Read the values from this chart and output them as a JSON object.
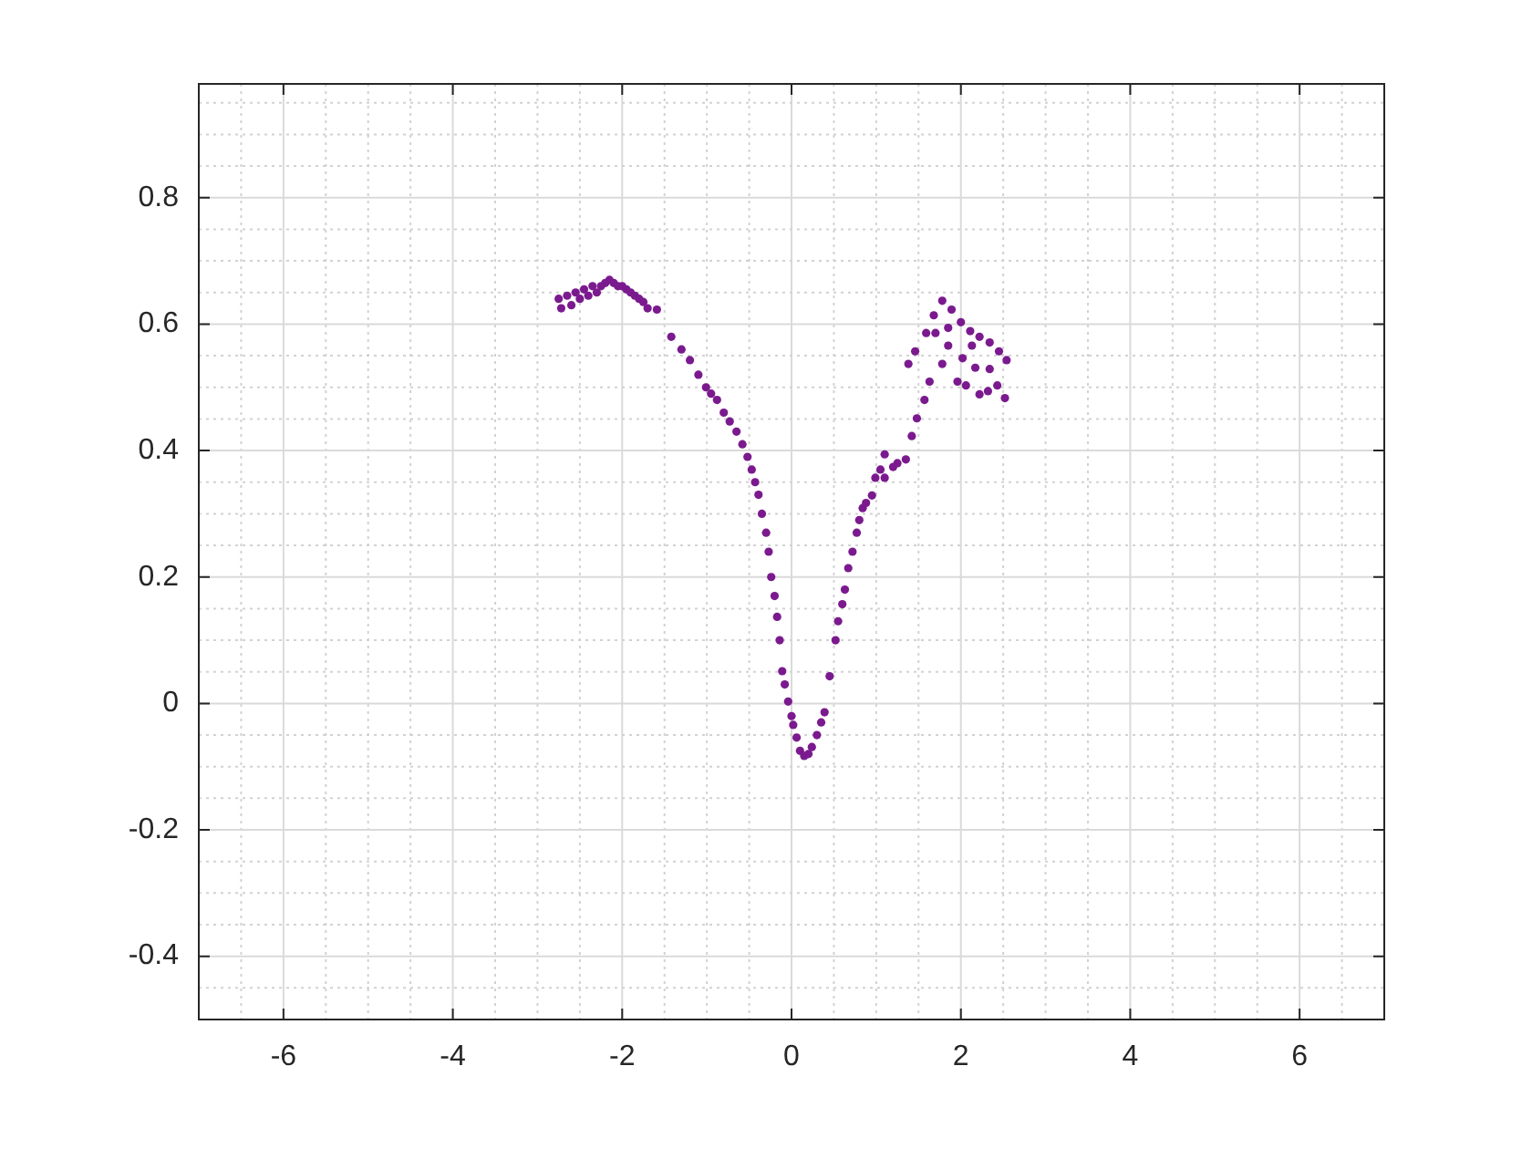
{
  "chart_data": {
    "type": "scatter",
    "marker": "circle",
    "grid": true,
    "xlim": [
      -7,
      7
    ],
    "ylim": [
      -0.5,
      0.98
    ],
    "xticks": [
      {
        "value": -7,
        "label": null
      },
      {
        "value": -6.5,
        "label": null
      },
      -6,
      {
        "value": -5.5,
        "label": null
      },
      {
        "value": -5,
        "label": null
      },
      {
        "value": -4.5,
        "label": null
      },
      -4,
      {
        "value": -3.5,
        "label": null
      },
      {
        "value": -3,
        "label": null
      },
      {
        "value": -2.5,
        "label": null
      },
      -2,
      {
        "value": -1.5,
        "label": null
      },
      {
        "value": -1,
        "label": null
      },
      {
        "value": -0.5,
        "label": null
      },
      0,
      {
        "value": 0.5,
        "label": null
      },
      {
        "value": 1,
        "label": null
      },
      {
        "value": 1.5,
        "label": null
      },
      2,
      {
        "value": 2.5,
        "label": null
      },
      {
        "value": 3,
        "label": null
      },
      {
        "value": 3.5,
        "label": null
      },
      4,
      {
        "value": 4.5,
        "label": null
      },
      {
        "value": 5,
        "label": null
      },
      {
        "value": 5.5,
        "label": null
      },
      6,
      {
        "value": 6.5,
        "label": null
      },
      {
        "value": 7,
        "label": null
      }
    ],
    "yticks": [
      {
        "value": -0.5,
        "label": null
      },
      {
        "value": -0.45,
        "label": null
      },
      -0.4,
      {
        "value": -0.35,
        "label": null
      },
      {
        "value": -0.3,
        "label": null
      },
      {
        "value": -0.25,
        "label": null
      },
      -0.2,
      {
        "value": -0.15,
        "label": null
      },
      {
        "value": -0.1,
        "label": null
      },
      {
        "value": -0.05,
        "label": null
      },
      0,
      {
        "value": 0.05,
        "label": null
      },
      {
        "value": 0.1,
        "label": null
      },
      {
        "value": 0.15,
        "label": null
      },
      0.2,
      {
        "value": 0.25,
        "label": null
      },
      {
        "value": 0.3,
        "label": null
      },
      {
        "value": 0.35,
        "label": null
      },
      0.4,
      {
        "value": 0.45,
        "label": null
      },
      {
        "value": 0.5,
        "label": null
      },
      {
        "value": 0.55,
        "label": null
      },
      0.6,
      {
        "value": 0.65,
        "label": null
      },
      {
        "value": 0.7,
        "label": null
      },
      {
        "value": 0.75,
        "label": null
      },
      0.8,
      {
        "value": 0.85,
        "label": null
      },
      {
        "value": 0.9,
        "label": null
      },
      {
        "value": 0.95,
        "label": null
      }
    ],
    "series": [
      {
        "color": "#7b1a8e",
        "x": [
          -2.75,
          -2.72,
          -2.65,
          -2.6,
          -2.55,
          -2.5,
          -2.45,
          -2.4,
          -2.35,
          -2.3,
          -2.25,
          -2.2,
          -2.15,
          -2.1,
          -2.05,
          -2.0,
          -1.95,
          -1.9,
          -1.85,
          -1.8,
          -1.75,
          -1.7,
          -1.59,
          -1.42,
          -1.3,
          -1.2,
          -1.1,
          -1.01,
          -0.95,
          -0.88,
          -0.8,
          -0.73,
          -0.65,
          -0.58,
          -0.52,
          -0.47,
          -0.43,
          -0.39,
          -0.35,
          -0.3,
          -0.27,
          -0.24,
          -0.2,
          -0.17,
          -0.14,
          -0.11,
          -0.08,
          -0.04,
          0.0,
          0.02,
          0.06,
          0.1,
          0.15,
          0.2,
          0.24,
          0.3,
          0.35,
          0.39,
          0.45,
          0.52,
          0.55,
          0.6,
          0.63,
          0.67,
          0.72,
          0.77,
          0.8,
          0.84,
          0.88,
          0.95,
          0.99,
          1.05,
          1.1,
          1.1,
          1.2,
          1.25,
          1.35,
          1.42,
          1.48,
          1.57,
          1.63,
          1.38,
          1.46,
          1.59,
          1.68,
          1.78,
          1.89,
          2.0,
          2.11,
          2.22,
          2.34,
          2.45,
          2.54,
          1.96,
          2.06,
          2.22,
          2.32,
          2.43,
          2.52,
          1.85,
          2.02,
          2.17,
          2.34,
          1.78,
          1.7,
          1.85,
          2.13
        ],
        "values": [
          0.64,
          0.625,
          0.645,
          0.63,
          0.65,
          0.64,
          0.655,
          0.645,
          0.66,
          0.65,
          0.66,
          0.665,
          0.67,
          0.665,
          0.66,
          0.66,
          0.655,
          0.65,
          0.645,
          0.64,
          0.635,
          0.625,
          0.623,
          0.58,
          0.56,
          0.543,
          0.52,
          0.5,
          0.49,
          0.48,
          0.46,
          0.446,
          0.43,
          0.41,
          0.39,
          0.37,
          0.35,
          0.33,
          0.3,
          0.27,
          0.24,
          0.2,
          0.17,
          0.137,
          0.1,
          0.051,
          0.03,
          0.003,
          -0.02,
          -0.034,
          -0.054,
          -0.075,
          -0.083,
          -0.08,
          -0.069,
          -0.05,
          -0.03,
          -0.014,
          0.043,
          0.1,
          0.13,
          0.157,
          0.18,
          0.214,
          0.24,
          0.27,
          0.29,
          0.309,
          0.317,
          0.329,
          0.357,
          0.37,
          0.357,
          0.394,
          0.374,
          0.38,
          0.386,
          0.423,
          0.451,
          0.48,
          0.509,
          0.537,
          0.557,
          0.586,
          0.614,
          0.637,
          0.623,
          0.603,
          0.589,
          0.58,
          0.571,
          0.557,
          0.543,
          0.509,
          0.503,
          0.489,
          0.494,
          0.503,
          0.483,
          0.566,
          0.546,
          0.531,
          0.529,
          0.537,
          0.586,
          0.594,
          0.566
        ]
      }
    ]
  }
}
